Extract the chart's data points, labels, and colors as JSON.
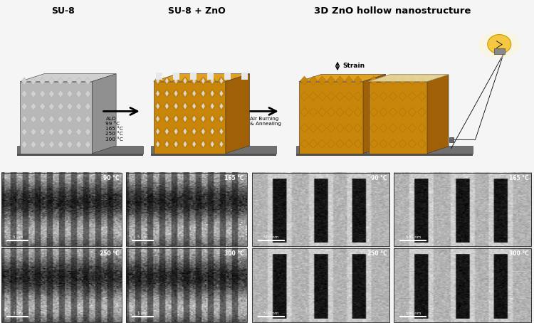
{
  "title_su8": "SU-8",
  "title_su8_zno": "SU-8 + ZnO",
  "title_3d": "3D ZnO hollow nanostructure",
  "arrow_label1": "ALD\n99 °C\n165 °C\n250 °C\n300 °C",
  "arrow_label2": "Air Burning\n& Annealing",
  "strain_label": "Strain",
  "scale_bars_left": [
    "5 μm",
    "5 μm",
    "3 μm",
    "1 μm"
  ],
  "scale_bars_right": [
    "500 nm",
    "500 nm",
    "500 nm",
    "500 nm"
  ],
  "bg_color": "#f5f5f5",
  "sem_gray": "#909090",
  "sem_dark": "#404040",
  "sem_light": "#c8c8c8",
  "gold_face": "#c8860a",
  "gold_top": "#e0a020",
  "gold_side": "#a06008",
  "silver_face": "#b8b8b8",
  "silver_top": "#d0d0d0",
  "silver_side": "#909090",
  "base_color": "#606060",
  "fig_width": 7.5,
  "fig_height": 4.54,
  "dpi": 100
}
